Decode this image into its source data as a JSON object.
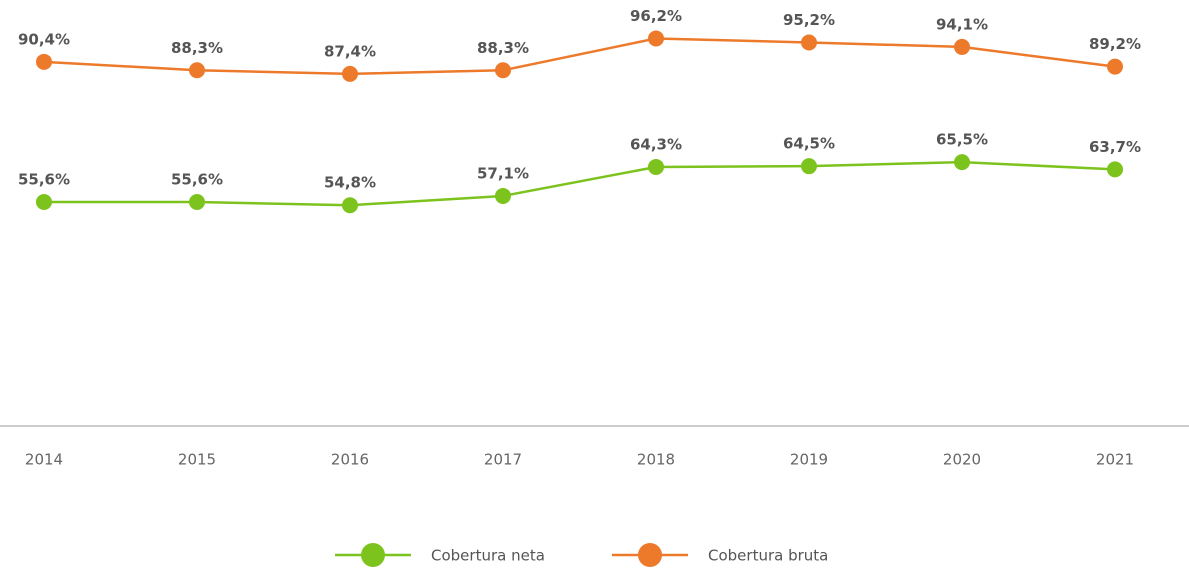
{
  "chart_data": {
    "type": "line",
    "categories": [
      "2014",
      "2015",
      "2016",
      "2017",
      "2018",
      "2019",
      "2020",
      "2021"
    ],
    "series": [
      {
        "name": "Cobertura neta",
        "color": "#7dc31e",
        "values": [
          55.6,
          55.6,
          54.8,
          57.1,
          64.3,
          64.5,
          65.5,
          63.7
        ],
        "value_labels": [
          "55,6%",
          "55,6%",
          "54,8%",
          "57,1%",
          "64,3%",
          "64,5%",
          "65,5%",
          "63,7%"
        ]
      },
      {
        "name": "Cobertura bruta",
        "color": "#ec7a2a",
        "values": [
          90.4,
          88.3,
          87.4,
          88.3,
          96.2,
          95.2,
          94.1,
          89.2
        ],
        "value_labels": [
          "90,4%",
          "88,3%",
          "87,4%",
          "88,3%",
          "96,2%",
          "95,2%",
          "94,1%",
          "89,2%"
        ]
      }
    ],
    "ylim": [
      0,
      105
    ],
    "legend": "bottom"
  }
}
